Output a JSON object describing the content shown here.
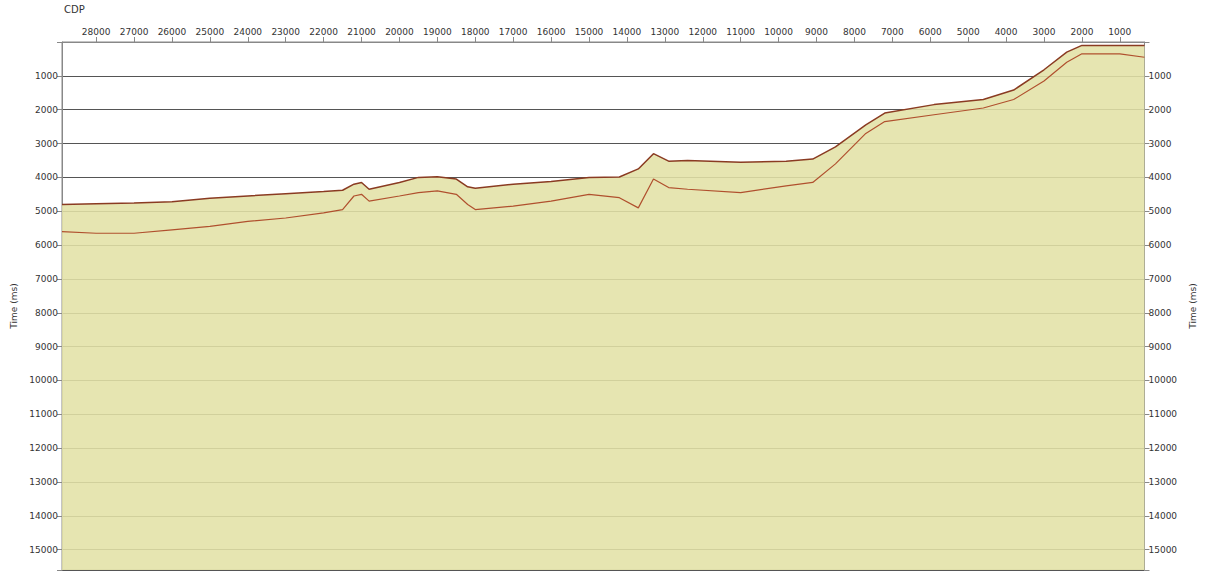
{
  "chart_data": {
    "type": "line",
    "x_label": "CDP",
    "y_label": "Time (ms)",
    "x": [
      28900,
      28000,
      27000,
      26000,
      25000,
      24000,
      23000,
      22000,
      21500,
      21200,
      21000,
      20800,
      20000,
      19500,
      19000,
      18500,
      18200,
      18000,
      17000,
      16000,
      15000,
      14200,
      13700,
      13300,
      12900,
      12400,
      11000,
      9800,
      9100,
      8500,
      7700,
      7200,
      5900,
      4600,
      3800,
      3000,
      2400,
      2000,
      1000,
      350
    ],
    "series": [
      {
        "color": "#8a3b22",
        "values": [
          4800,
          4780,
          4760,
          4720,
          4620,
          4550,
          4480,
          4420,
          4380,
          4200,
          4150,
          4350,
          4150,
          4000,
          3980,
          4050,
          4280,
          4320,
          4200,
          4120,
          4000,
          3990,
          3750,
          3300,
          3520,
          3500,
          3550,
          3520,
          3460,
          3100,
          2450,
          2100,
          1850,
          1700,
          1420,
          820,
          300,
          100,
          100,
          100
        ]
      },
      {
        "color": "#b0502e",
        "values": [
          5600,
          5650,
          5650,
          5550,
          5450,
          5300,
          5200,
          5050,
          4950,
          4550,
          4500,
          4700,
          4550,
          4450,
          4400,
          4500,
          4800,
          4950,
          4850,
          4700,
          4500,
          4600,
          4900,
          4050,
          4300,
          4350,
          4450,
          4250,
          4150,
          3600,
          2700,
          2350,
          2150,
          1950,
          1700,
          1150,
          600,
          350,
          350,
          450
        ]
      }
    ],
    "xlim": [
      28900,
      350
    ],
    "xticks": [
      28000,
      27000,
      26000,
      25000,
      24000,
      23000,
      22000,
      21000,
      20000,
      19000,
      18000,
      17000,
      16000,
      15000,
      14000,
      13000,
      12000,
      11000,
      10000,
      9000,
      8000,
      7000,
      6000,
      5000,
      4000,
      3000,
      2000,
      1000
    ],
    "ylim": [
      15600,
      0
    ],
    "yticks": [
      1000,
      2000,
      3000,
      4000,
      5000,
      6000,
      7000,
      8000,
      9000,
      10000,
      11000,
      12000,
      13000,
      14000,
      15000
    ],
    "grid": true
  }
}
